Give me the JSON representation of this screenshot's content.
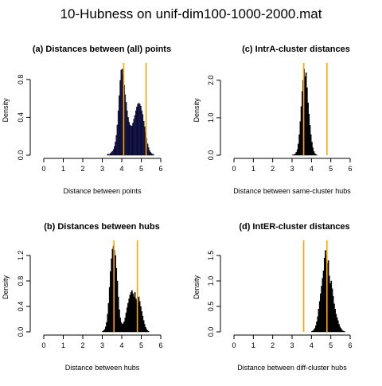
{
  "page_title": "10-Hubness on unif-dim100-1000-2000.mat",
  "chart_data": [
    {
      "type": "bar",
      "panel": "a",
      "title": "(a) Distances between (all) points",
      "xlabel": "Distance between points",
      "ylabel": "Density",
      "xlim": [
        0,
        6
      ],
      "ylim": [
        0,
        0.95
      ],
      "xticks": [
        "0",
        "1",
        "2",
        "3",
        "4",
        "5",
        "6"
      ],
      "yticks": [
        "0.0",
        "0.4",
        "0.8"
      ],
      "ytick_values": [
        0,
        0.4,
        0.8
      ],
      "bar_fill": "#1a1a66",
      "bar_width": 0.05,
      "x": [
        2.9,
        2.95,
        3.0,
        3.05,
        3.1,
        3.15,
        3.2,
        3.25,
        3.3,
        3.35,
        3.4,
        3.45,
        3.5,
        3.55,
        3.6,
        3.65,
        3.7,
        3.75,
        3.8,
        3.85,
        3.9,
        3.95,
        4.0,
        4.05,
        4.1,
        4.15,
        4.2,
        4.25,
        4.3,
        4.35,
        4.4,
        4.45,
        4.5,
        4.55,
        4.6,
        4.65,
        4.7,
        4.75,
        4.8,
        4.85,
        4.9,
        4.95,
        5.0,
        5.05,
        5.1,
        5.15,
        5.2,
        5.25,
        5.3,
        5.35,
        5.4,
        5.45,
        5.5,
        5.55,
        5.6,
        5.65,
        5.7,
        5.75,
        5.8,
        5.85,
        5.9,
        5.95,
        6.0,
        6.05,
        6.1,
        6.15,
        6.2
      ],
      "values": [
        0,
        0,
        0,
        0,
        0,
        0,
        0,
        0.01,
        0.01,
        0.01,
        0.02,
        0.03,
        0.04,
        0.06,
        0.09,
        0.14,
        0.21,
        0.32,
        0.47,
        0.63,
        0.79,
        0.9,
        0.91,
        0.85,
        0.74,
        0.64,
        0.56,
        0.47,
        0.4,
        0.35,
        0.32,
        0.31,
        0.31,
        0.34,
        0.38,
        0.42,
        0.47,
        0.51,
        0.54,
        0.55,
        0.54,
        0.52,
        0.47,
        0.43,
        0.36,
        0.3,
        0.24,
        0.18,
        0.12,
        0.08,
        0.05,
        0.03,
        0.02,
        0.01,
        0.01,
        0.0,
        0,
        0,
        0,
        0,
        0,
        0,
        0,
        0,
        0,
        0,
        0
      ],
      "vlines": [
        4.1,
        5.25
      ],
      "vline_color": "#ffa500"
    },
    {
      "type": "bar",
      "panel": "c",
      "title": "(c) IntrA-cluster distances",
      "xlabel": "Distance between same-cluster hubs",
      "ylabel": "Density",
      "xlim": [
        0,
        6
      ],
      "ylim": [
        0,
        2.4
      ],
      "xticks": [
        "0",
        "1",
        "2",
        "3",
        "4",
        "5",
        "6"
      ],
      "yticks": [
        "0.0",
        "1.0",
        "2.0"
      ],
      "ytick_values": [
        0,
        1.0,
        2.0
      ],
      "bar_fill": "#000000",
      "bar_width": 0.05,
      "x": [
        3.0,
        3.05,
        3.1,
        3.15,
        3.2,
        3.25,
        3.3,
        3.35,
        3.4,
        3.45,
        3.5,
        3.55,
        3.6,
        3.65,
        3.7,
        3.75,
        3.8,
        3.85,
        3.9,
        3.95,
        4.0,
        4.05,
        4.1,
        4.15,
        4.2,
        4.25
      ],
      "values": [
        0.01,
        0.01,
        0.02,
        0.04,
        0.08,
        0.15,
        0.3,
        0.55,
        0.9,
        1.3,
        1.7,
        2.0,
        2.3,
        2.1,
        2.2,
        1.8,
        1.4,
        1.1,
        0.8,
        0.55,
        0.35,
        0.2,
        0.1,
        0.05,
        0.02,
        0.01
      ],
      "vlines": [
        3.6,
        4.8
      ],
      "vline_color": "#ffa500"
    },
    {
      "type": "bar",
      "panel": "b",
      "title": "(b) Distances between hubs",
      "xlabel": "Distance between hubs",
      "ylabel": "Density",
      "xlim": [
        0,
        6
      ],
      "ylim": [
        0,
        1.4
      ],
      "xticks": [
        "0",
        "1",
        "2",
        "3",
        "4",
        "5",
        "6"
      ],
      "yticks": [
        "0.0",
        "0.4",
        "0.8",
        "1.2"
      ],
      "ytick_values": [
        0,
        0.4,
        0.8,
        1.2
      ],
      "bar_fill": "#000000",
      "bar_width": 0.05,
      "x": [
        3.0,
        3.05,
        3.1,
        3.15,
        3.2,
        3.25,
        3.3,
        3.35,
        3.4,
        3.45,
        3.5,
        3.55,
        3.6,
        3.65,
        3.7,
        3.75,
        3.8,
        3.85,
        3.9,
        3.95,
        4.0,
        4.05,
        4.1,
        4.15,
        4.2,
        4.25,
        4.3,
        4.35,
        4.4,
        4.45,
        4.5,
        4.55,
        4.6,
        4.65,
        4.7,
        4.75,
        4.8,
        4.85,
        4.9,
        4.95,
        5.0,
        5.05,
        5.1,
        5.15,
        5.2,
        5.25,
        5.3,
        5.35
      ],
      "values": [
        0.01,
        0.02,
        0.04,
        0.08,
        0.15,
        0.28,
        0.45,
        0.7,
        0.95,
        1.15,
        1.3,
        1.35,
        1.28,
        1.2,
        1.0,
        0.8,
        0.55,
        0.35,
        0.22,
        0.15,
        0.12,
        0.13,
        0.16,
        0.22,
        0.3,
        0.38,
        0.45,
        0.52,
        0.58,
        0.62,
        0.65,
        0.6,
        0.55,
        0.62,
        0.52,
        0.5,
        0.45,
        0.55,
        0.48,
        0.4,
        0.32,
        0.25,
        0.18,
        0.12,
        0.07,
        0.04,
        0.02,
        0.01
      ],
      "vlines": [
        3.6,
        4.8
      ],
      "vline_color": "#ffa500"
    },
    {
      "type": "bar",
      "panel": "d",
      "title": "(d) IntER-cluster distances",
      "xlabel": "Distance between diff-cluster hubs",
      "ylabel": "Density",
      "xlim": [
        0,
        6
      ],
      "ylim": [
        0,
        1.75
      ],
      "xticks": [
        "0",
        "1",
        "2",
        "3",
        "4",
        "5",
        "6"
      ],
      "yticks": [
        "0.0",
        "0.5",
        "1.0",
        "1.5"
      ],
      "ytick_values": [
        0,
        0.5,
        1.0,
        1.5
      ],
      "bar_fill": "#000000",
      "bar_width": 0.05,
      "x": [
        4.0,
        4.05,
        4.1,
        4.15,
        4.2,
        4.25,
        4.3,
        4.35,
        4.4,
        4.45,
        4.5,
        4.55,
        4.6,
        4.65,
        4.7,
        4.75,
        4.8,
        4.85,
        4.9,
        4.95,
        5.0,
        5.05,
        5.1,
        5.15,
        5.2,
        5.25,
        5.3,
        5.35,
        5.4,
        5.45,
        5.5,
        5.55,
        5.6,
        5.65,
        5.7
      ],
      "values": [
        0.01,
        0.02,
        0.04,
        0.07,
        0.12,
        0.2,
        0.3,
        0.45,
        0.6,
        0.75,
        0.9,
        1.05,
        1.2,
        1.45,
        1.6,
        1.5,
        1.35,
        1.4,
        1.1,
        0.95,
        1.0,
        0.85,
        0.7,
        0.55,
        0.45,
        0.35,
        0.28,
        0.22,
        0.15,
        0.1,
        0.07,
        0.04,
        0.02,
        0.01,
        0.005
      ],
      "vlines": [
        3.6,
        4.8
      ],
      "vline_color": "#ffa500"
    }
  ]
}
